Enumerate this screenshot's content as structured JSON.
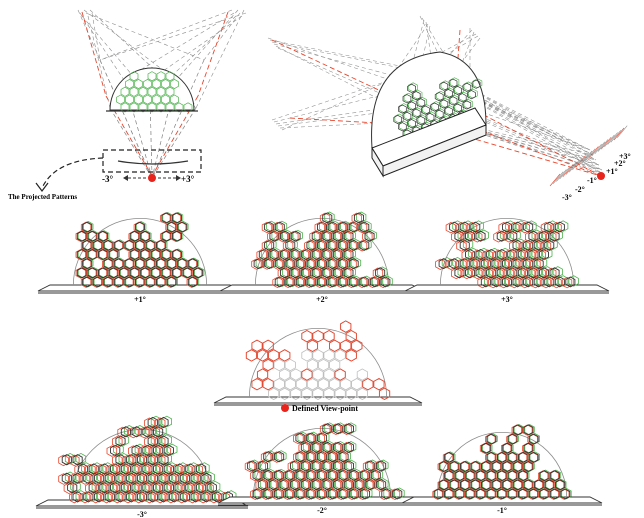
{
  "colors": {
    "red": "#e8452c",
    "green": "#4db34d",
    "dark": "#333333",
    "grey": "#8c8c8c",
    "light_grey": "#bdbdbd",
    "viewpoint": "#e8231c"
  },
  "top_left": {
    "caption": "The Projected Patterns",
    "left_angle": "-3°",
    "right_angle": "+3°"
  },
  "top_right": {
    "angle_labels": [
      "+3°",
      "+2°",
      "+1°",
      "-1°",
      "-2°",
      "-3°"
    ]
  },
  "variants_row1": [
    {
      "label": "+1°",
      "offset_deg": 1
    },
    {
      "label": "+2°",
      "offset_deg": 2
    },
    {
      "label": "+3°",
      "offset_deg": 3
    }
  ],
  "center": {
    "label": "Defined View-point",
    "offset_deg": 0
  },
  "variants_row3": [
    {
      "label": "-3°",
      "offset_deg": -3
    },
    {
      "label": "-2°",
      "offset_deg": -2
    },
    {
      "label": "-1°",
      "offset_deg": -1
    }
  ]
}
